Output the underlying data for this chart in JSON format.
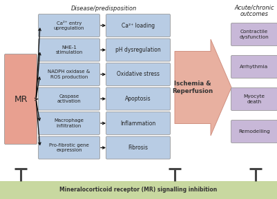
{
  "bg_color": "#ffffff",
  "title_disease": "Disease/predisposition",
  "title_outcomes": "Acute/chronic\noutcomes",
  "mr_box": {
    "text": "MR",
    "color": "#e8a090"
  },
  "left_boxes": [
    {
      "text": "Ca²⁺ entry\nupregulation",
      "color": "#b8cce4"
    },
    {
      "text": "NHE-1\nstimulation",
      "color": "#b8cce4"
    },
    {
      "text": "NADPH oxidase &\nROS production",
      "color": "#b8cce4"
    },
    {
      "text": "Caspase\nactivation",
      "color": "#b8cce4"
    },
    {
      "text": "Macrophage\ninfiltration",
      "color": "#b8cce4"
    },
    {
      "text": "Pro-fibrotic gene\nexpression",
      "color": "#b8cce4"
    }
  ],
  "right_boxes": [
    {
      "text": "Ca²⁺ loading",
      "color": "#b8cce4"
    },
    {
      "text": "pH dysregulation",
      "color": "#b8cce4"
    },
    {
      "text": "Oxidative stress",
      "color": "#b8cce4"
    },
    {
      "text": "Apoptosis",
      "color": "#b8cce4"
    },
    {
      "text": "Inflammation",
      "color": "#b8cce4"
    },
    {
      "text": "Fibrosis",
      "color": "#b8cce4"
    }
  ],
  "outcome_boxes": [
    {
      "text": "Contractile\ndysfunction",
      "color": "#c8b8d8"
    },
    {
      "text": "Arrhythmia",
      "color": "#c8b8d8"
    },
    {
      "text": "Myocyte\ndeath",
      "color": "#c8b8d8"
    },
    {
      "text": "Remodelling",
      "color": "#c8b8d8"
    }
  ],
  "ischemia_text": "Ischemia &\nReperfusion",
  "ischemia_color": "#e8b0a0",
  "ischemia_edge_color": "#d09080",
  "inhibition_text": "Mineralocorticoid receptor (MR) signalling inhibition",
  "inhibition_color": "#c8d8a0",
  "inhibition_text_color": "#333333",
  "arrow_color": "#111111",
  "tbar_color": "#444444"
}
